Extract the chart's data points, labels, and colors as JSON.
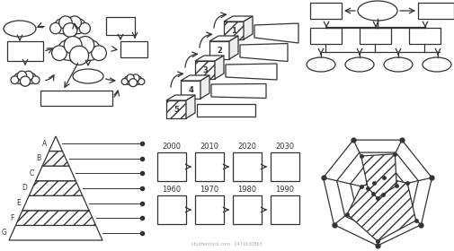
{
  "bg_color": "#ffffff",
  "line_color": "#333333",
  "pyramid_labels": [
    "A",
    "B",
    "C",
    "D",
    "E",
    "F",
    "G"
  ],
  "timeline_years_top": [
    "2000",
    "2010",
    "2020",
    "2030"
  ],
  "timeline_years_bottom": [
    "1960",
    "1970",
    "1980",
    "1990"
  ],
  "stair_labels": [
    "1",
    "2",
    "3",
    "4",
    "5"
  ],
  "radar_n_axes": 7,
  "radar_rings": 4,
  "radar_vals1": [
    0.92,
    0.88,
    0.55,
    0.25,
    0.15,
    0.3,
    0.7
  ],
  "radar_vals2": [
    0.15,
    0.12,
    0.35,
    0.72,
    0.68,
    0.18,
    0.1
  ]
}
